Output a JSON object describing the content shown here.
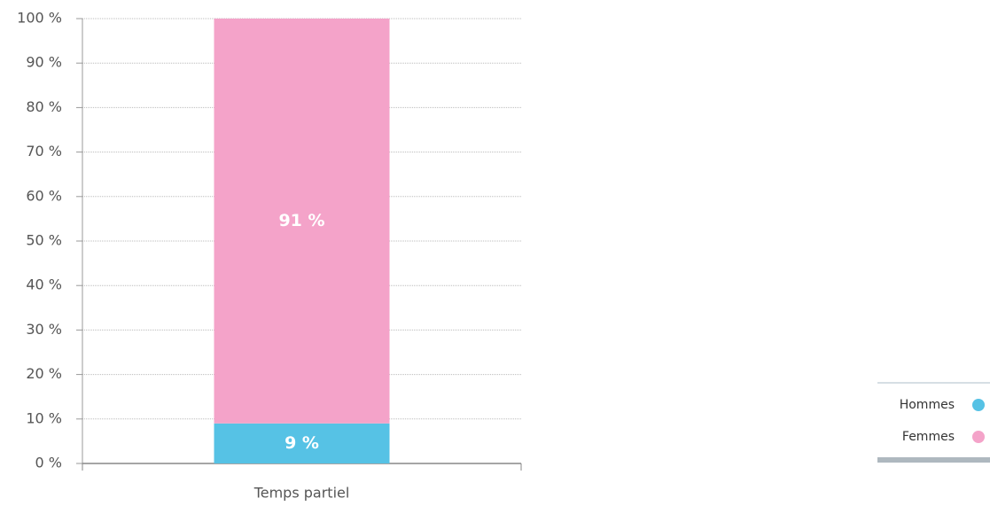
{
  "chart_data": {
    "type": "bar",
    "stacked": true,
    "categories": [
      "Temps partiel"
    ],
    "series": [
      {
        "name": "Hommes",
        "color": "#56c2e5",
        "values": [
          9
        ],
        "value_labels": [
          "9 %"
        ]
      },
      {
        "name": "Femmes",
        "color": "#f4a3c9",
        "values": [
          91
        ],
        "value_labels": [
          "91 %"
        ]
      }
    ],
    "ylim": [
      0,
      100
    ],
    "yticks": [
      {
        "value": 0,
        "label": "0 %"
      },
      {
        "value": 10,
        "label": "10 %"
      },
      {
        "value": 20,
        "label": "20 %"
      },
      {
        "value": 30,
        "label": "30 %"
      },
      {
        "value": 40,
        "label": "40 %"
      },
      {
        "value": 50,
        "label": "50 %"
      },
      {
        "value": 60,
        "label": "60 %"
      },
      {
        "value": 70,
        "label": "70 %"
      },
      {
        "value": 80,
        "label": "80 %"
      },
      {
        "value": 90,
        "label": "90 %"
      },
      {
        "value": 100,
        "label": "100 %"
      }
    ],
    "grid": true
  }
}
